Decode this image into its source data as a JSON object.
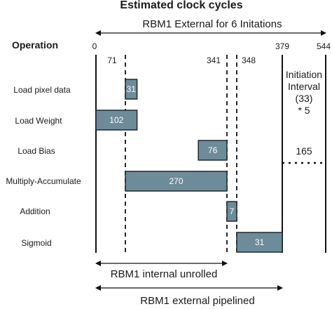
{
  "title": "Estimated clock cycles",
  "top_span_label": "RBM1 External for 6 Initations",
  "column_header": "Operation",
  "ticks": [
    {
      "label": "0",
      "value": 0
    },
    {
      "label": "71",
      "value": 71
    },
    {
      "label": "341",
      "value": 341
    },
    {
      "label": "348",
      "value": 348
    },
    {
      "label": "379",
      "value": 379
    },
    {
      "label": "544",
      "value": 544
    }
  ],
  "operations": [
    {
      "name": "Load pixel data",
      "start": 71,
      "cycles": 31,
      "label": "31"
    },
    {
      "name": "Load Weight",
      "start": 0,
      "cycles": 102,
      "label": "102"
    },
    {
      "name": "Load Bias",
      "start": 265,
      "cycles": 76,
      "label": "76"
    },
    {
      "name": "Multiply-Accumulate",
      "start": 71,
      "cycles": 270,
      "label": "270"
    },
    {
      "name": "Addition",
      "start": 341,
      "cycles": 7,
      "label": "7"
    },
    {
      "name": "Sigmoid",
      "start": 348,
      "cycles": 31,
      "label": "31"
    }
  ],
  "initiation_note": [
    "Initiation",
    "Interval",
    "(33)",
    "* 5"
  ],
  "interval_value": "165",
  "bottom_span_1": "RBM1 internal unrolled",
  "bottom_span_2": "RBM1 external pipelined",
  "colors": {
    "bar_fill": "#6e8b99",
    "bar_stroke": "#1f2a30",
    "line": "#111111"
  }
}
